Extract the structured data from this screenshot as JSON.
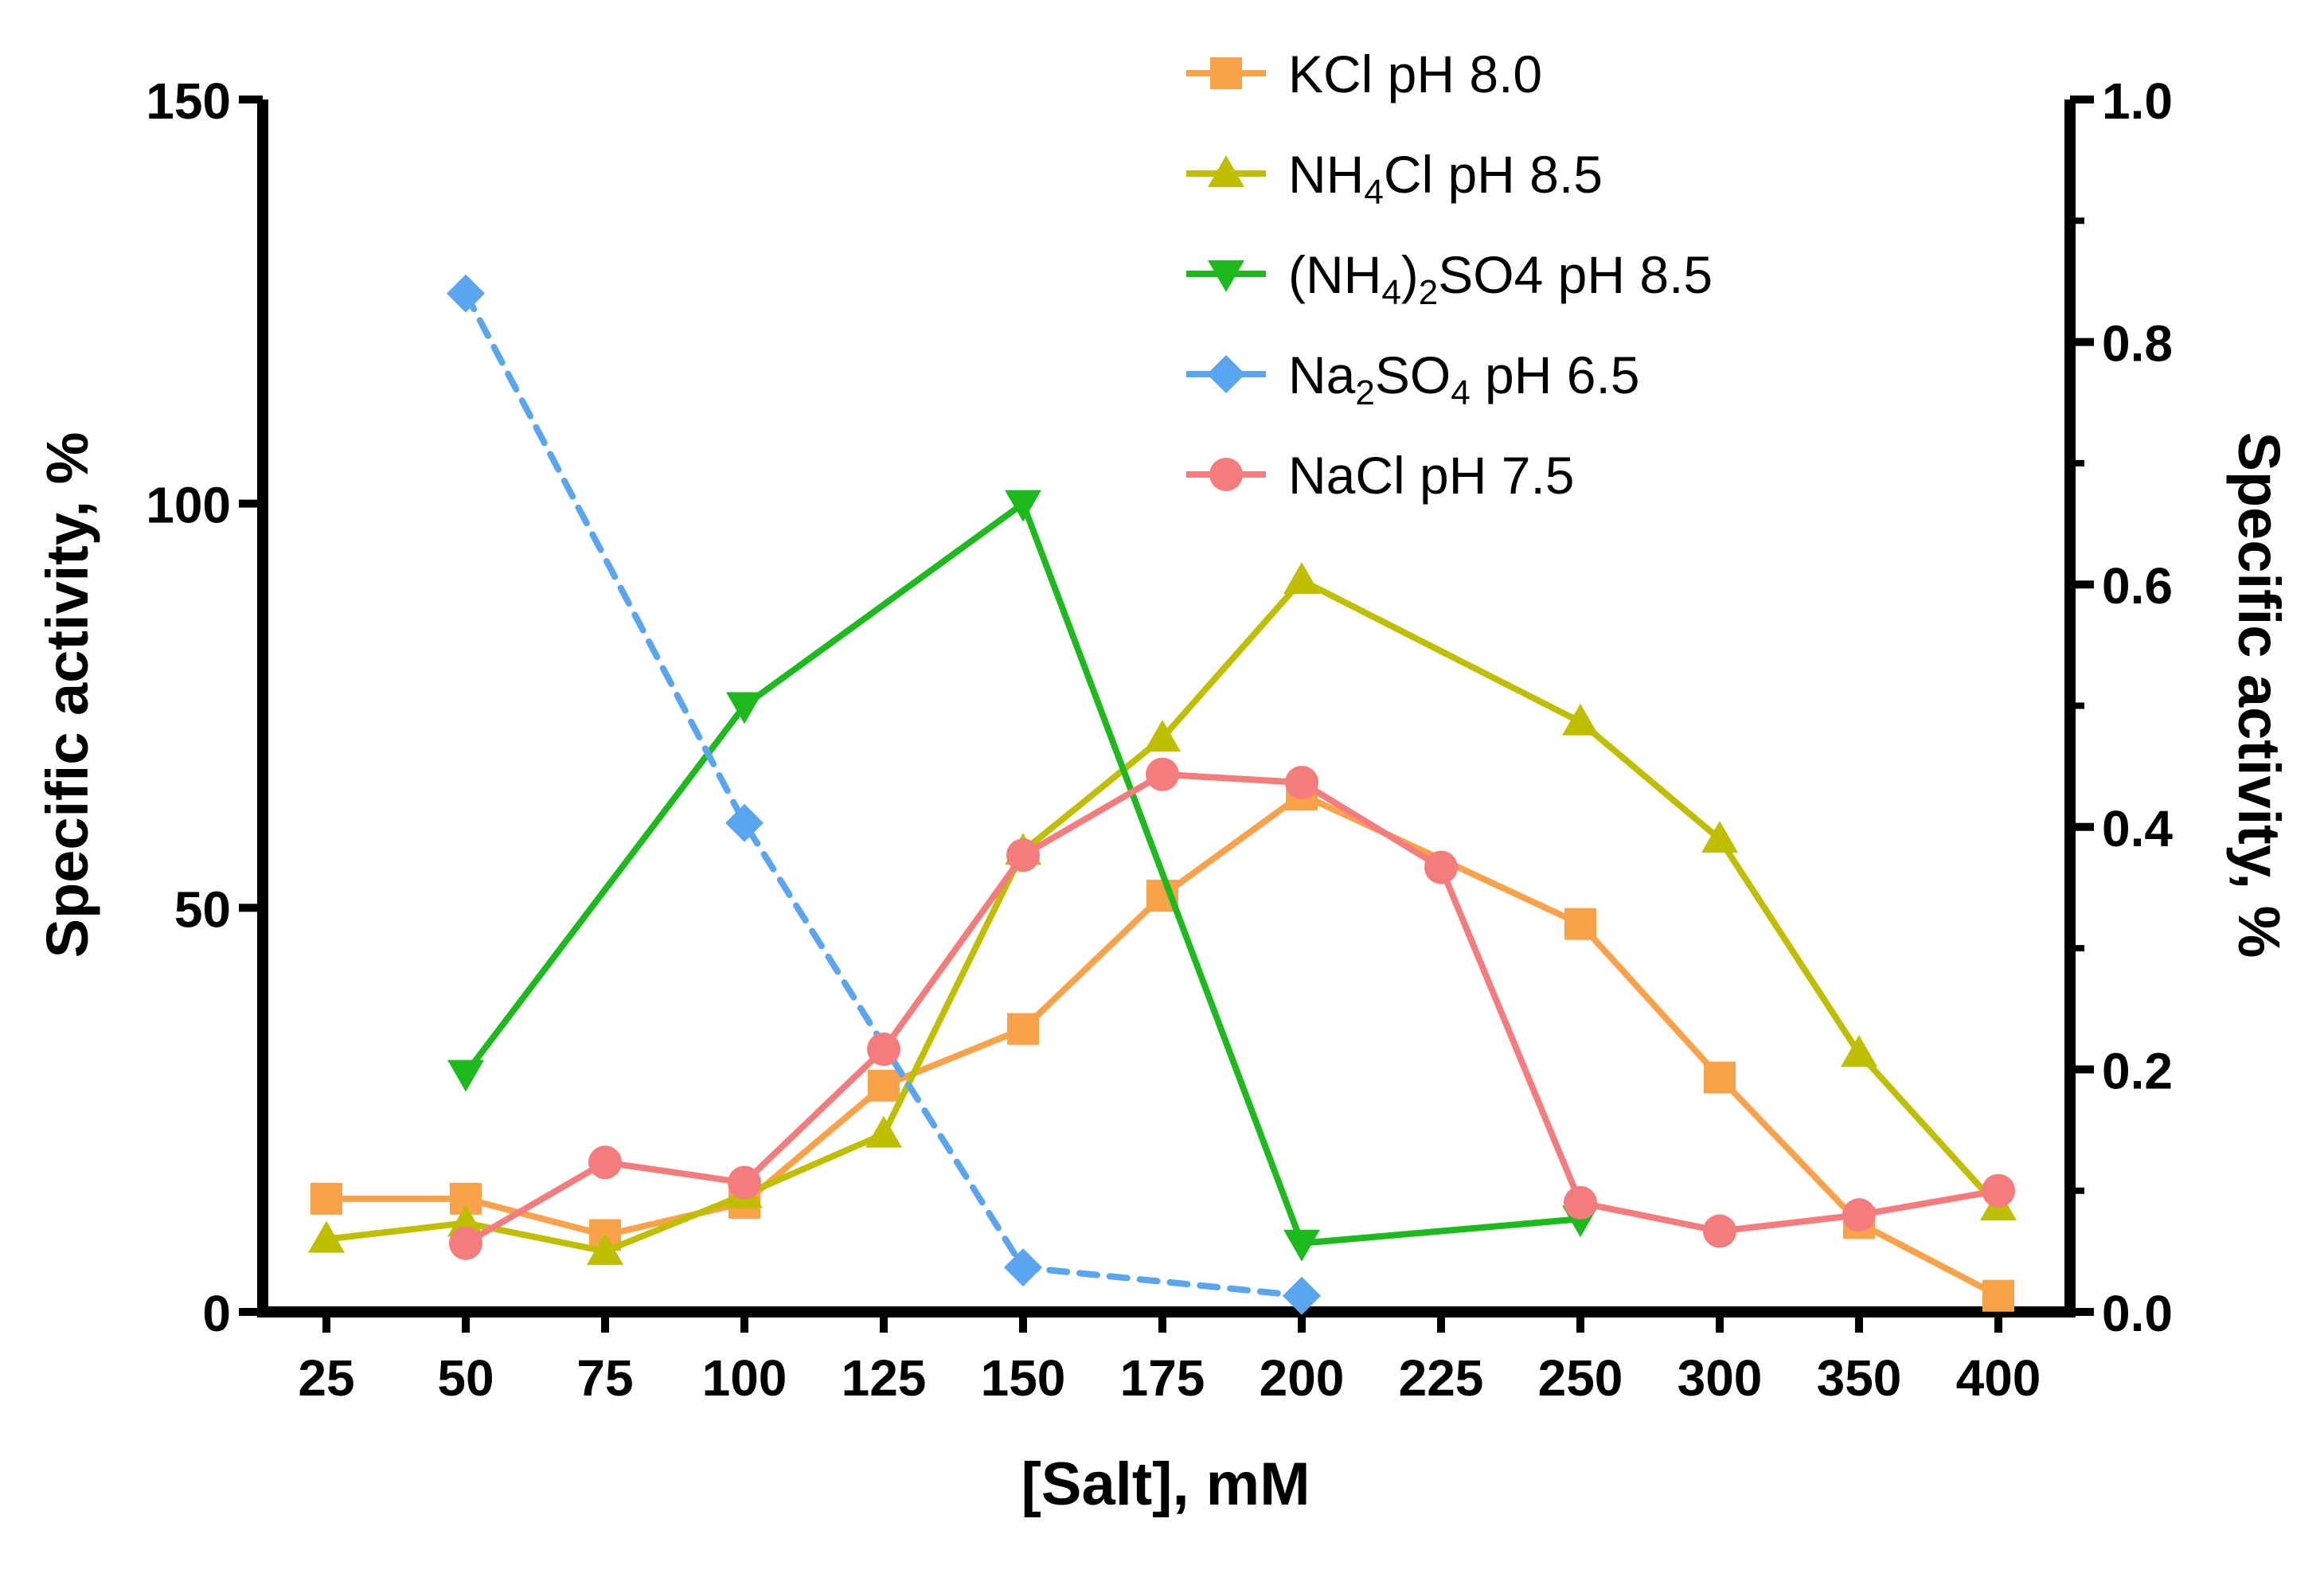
{
  "chart_data": {
    "type": "line",
    "title": "",
    "xlabel": "[Salt], mM",
    "ylabel_left": "Specific activity, %",
    "ylabel_right": "Specific activity, %",
    "categories": [
      "25",
      "50",
      "75",
      "100",
      "125",
      "150",
      "175",
      "200",
      "225",
      "250",
      "300",
      "350",
      "400"
    ],
    "ylim_left": [
      0,
      150
    ],
    "ylim_right": [
      0,
      1.0
    ],
    "yticks_left": [
      0,
      50,
      100,
      150
    ],
    "yticks_left_labels": [
      "0",
      "50",
      "100",
      "150"
    ],
    "yticks_right": [
      0,
      0.2,
      0.4,
      0.6,
      0.8,
      1.0
    ],
    "yticks_right_labels": [
      "0.0",
      "0.2",
      "0.4",
      "0.6",
      "0.8",
      "1.0"
    ],
    "legend_position": "top-center",
    "series": [
      {
        "name": "KCl pH 8.0",
        "legend": {
          "main": "KCl pH 8.0",
          "sub1": "",
          "mid": "",
          "sub2": "",
          "tail": ""
        },
        "color": "#f9a24a",
        "marker": "square",
        "dashed": false,
        "values": [
          14,
          14,
          9.5,
          13.5,
          28,
          35,
          51.5,
          64,
          null,
          48,
          29,
          11,
          2
        ]
      },
      {
        "name": "NH4Cl pH 8.5",
        "legend": {
          "main": "NH",
          "sub1": "4",
          "mid": "Cl pH 8.5",
          "sub2": "",
          "tail": ""
        },
        "color": "#bfbf00",
        "marker": "triangle-up",
        "dashed": false,
        "values": [
          9,
          11,
          7.5,
          14.5,
          22,
          57,
          71,
          90.5,
          null,
          73,
          58.5,
          32,
          13
        ]
      },
      {
        "name": "(NH4)2SO4 pH 8.5",
        "legend": {
          "main": "(NH",
          "sub1": "4",
          "mid": ")",
          "sub2": "2",
          "tail": "SO4 pH 8.5"
        },
        "color": "#1dba1d",
        "marker": "triangle-down",
        "dashed": false,
        "values": [
          null,
          29.5,
          null,
          75,
          null,
          100,
          null,
          8.5,
          null,
          11.5,
          null,
          null,
          null
        ]
      },
      {
        "name": "Na2SO4 pH 6.5",
        "legend": {
          "main": "Na",
          "sub1": "2",
          "mid": "SO",
          "sub2": "4",
          "tail": " pH 6.5"
        },
        "color": "#5aa5f0",
        "marker": "diamond",
        "dashed": true,
        "values": [
          null,
          126,
          null,
          60.5,
          null,
          5.5,
          null,
          2,
          null,
          null,
          null,
          null,
          null
        ]
      },
      {
        "name": "NaCl pH 7.5",
        "legend": {
          "main": "NaCl pH 7.5",
          "sub1": "",
          "mid": "",
          "sub2": "",
          "tail": ""
        },
        "color": "#f47c7c",
        "marker": "circle",
        "dashed": false,
        "values": [
          null,
          8.5,
          18.5,
          16,
          32.5,
          56.5,
          66.5,
          65.5,
          55,
          13.5,
          10,
          12,
          15
        ]
      }
    ]
  }
}
